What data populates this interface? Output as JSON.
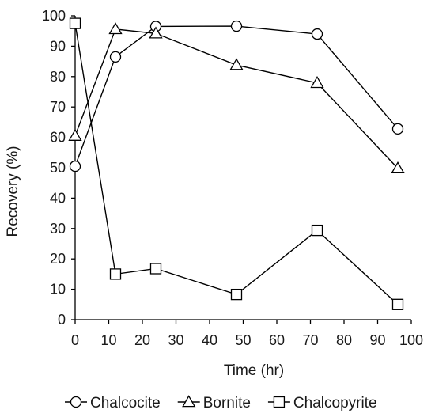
{
  "chart_data": {
    "type": "line",
    "xlabel": "Time (hr)",
    "ylabel": "Recovery (%)",
    "xlim": [
      0,
      100
    ],
    "ylim": [
      0,
      100
    ],
    "x_ticks": [
      0,
      10,
      20,
      30,
      40,
      50,
      60,
      70,
      80,
      90,
      100
    ],
    "y_ticks": [
      0,
      10,
      20,
      30,
      40,
      50,
      60,
      70,
      80,
      90,
      100
    ],
    "grid": false,
    "legend_position": "bottom",
    "series": [
      {
        "name": "Chalcocite",
        "marker": "circle",
        "x": [
          0,
          12,
          24,
          48,
          72,
          96
        ],
        "y": [
          50.5,
          86.5,
          96.5,
          96.6,
          94.0,
          62.8
        ]
      },
      {
        "name": "Bornite",
        "marker": "triangle",
        "x": [
          0,
          12,
          24,
          48,
          72,
          96
        ],
        "y": [
          60.5,
          95.6,
          94.2,
          83.8,
          77.9,
          49.8
        ]
      },
      {
        "name": "Chalcopyrite",
        "marker": "square",
        "x": [
          0,
          12,
          24,
          48,
          72,
          96
        ],
        "y": [
          97.5,
          15.0,
          16.8,
          8.3,
          29.4,
          5.0
        ]
      }
    ],
    "line_color": "#000000",
    "marker_fill": "#ffffff"
  }
}
